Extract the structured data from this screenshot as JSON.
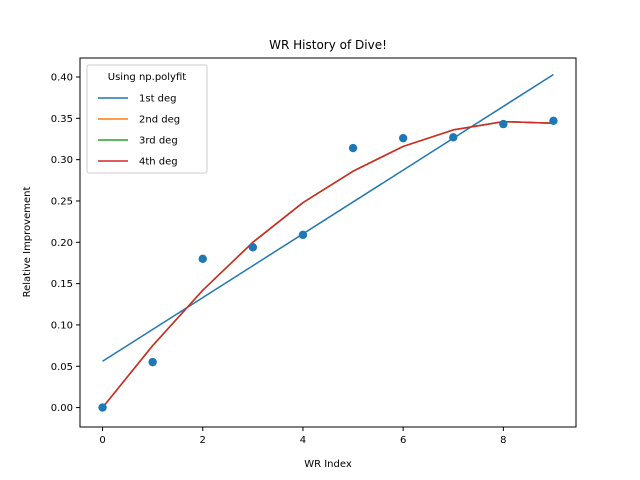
{
  "chart_data": {
    "type": "line",
    "title": "WR History of Dive!",
    "xlabel": "WR Index",
    "ylabel": "Relative Improvement",
    "xlim": [
      -0.45,
      9.45
    ],
    "ylim": [
      -0.0235,
      0.423
    ],
    "xticks": [
      0,
      2,
      4,
      6,
      8
    ],
    "xtick_labels": [
      "0",
      "2",
      "4",
      "6",
      "8"
    ],
    "yticks": [
      0.0,
      0.05,
      0.1,
      0.15,
      0.2,
      0.25,
      0.3,
      0.35,
      0.4
    ],
    "ytick_labels": [
      "0.00",
      "0.05",
      "0.10",
      "0.15",
      "0.20",
      "0.25",
      "0.30",
      "0.35",
      "0.40"
    ],
    "grid": false,
    "legend": {
      "title": "Using np.polyfit",
      "placement": "top-left"
    },
    "scatter": {
      "color": "#1f77b4",
      "x": [
        0,
        1,
        2,
        3,
        4,
        5,
        6,
        7,
        8,
        9
      ],
      "y": [
        0.0,
        0.055,
        0.18,
        0.194,
        0.209,
        0.314,
        0.326,
        0.327,
        0.343,
        0.347
      ]
    },
    "series": [
      {
        "name": "1st deg",
        "color": "#1f77b4",
        "x": [
          0,
          9
        ],
        "y": [
          0.056,
          0.403
        ]
      },
      {
        "name": "2nd deg",
        "color": "#ff7f0e",
        "x": [
          0,
          1,
          2,
          3,
          4,
          5,
          6,
          7,
          8,
          9
        ],
        "y": [
          0.0,
          0.075,
          0.142,
          0.2,
          0.248,
          0.286,
          0.316,
          0.336,
          0.346,
          0.344
        ]
      },
      {
        "name": "3rd deg",
        "color": "#2ca02c",
        "x": [
          0,
          1,
          2,
          3,
          4,
          5,
          6,
          7,
          8,
          9
        ],
        "y": [
          0.0,
          0.075,
          0.142,
          0.2,
          0.248,
          0.286,
          0.316,
          0.336,
          0.346,
          0.344
        ]
      },
      {
        "name": "4th deg",
        "color": "#d62728",
        "x": [
          0,
          1,
          2,
          3,
          4,
          5,
          6,
          7,
          8,
          9
        ],
        "y": [
          0.0,
          0.075,
          0.142,
          0.2,
          0.248,
          0.286,
          0.316,
          0.336,
          0.346,
          0.344
        ]
      }
    ]
  }
}
